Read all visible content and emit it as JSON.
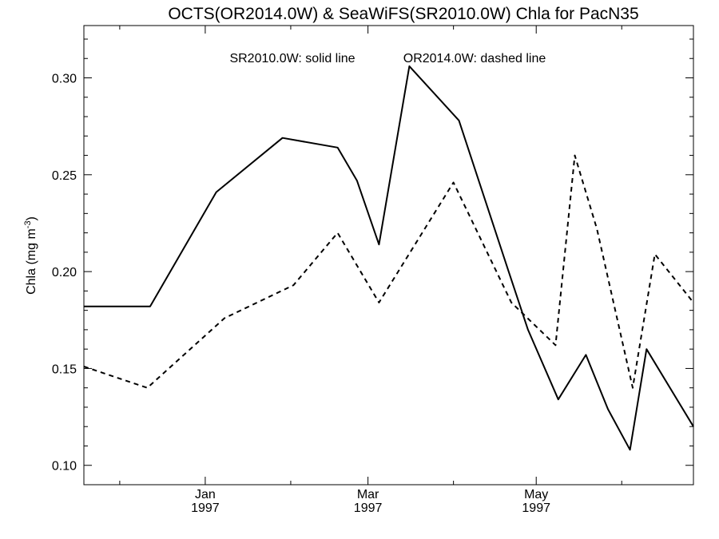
{
  "chart_data": {
    "type": "line",
    "title": "OCTS(OR2014.0W) & SeaWiFS(SR2010.0W)  Chla for PacN35",
    "legend_solid": "SR2010.0W: solid line",
    "legend_dashed": "OR2014.0W: dashed line",
    "ylabel_main": "Chla (mg m",
    "ylabel_exp": "-3",
    "ylabel_close": ")",
    "xlabel": "",
    "ylim": [
      0.09,
      0.327
    ],
    "xlim": [
      "1996-11-18",
      "1997-06-27"
    ],
    "yticks": [
      {
        "value": 0.1,
        "label": "0.10"
      },
      {
        "value": 0.15,
        "label": "0.15"
      },
      {
        "value": 0.2,
        "label": "0.20"
      },
      {
        "value": 0.25,
        "label": "0.25"
      },
      {
        "value": 0.3,
        "label": "0.30"
      }
    ],
    "xticks": [
      {
        "date": "1997-01-01",
        "month": "Jan",
        "year": "1997"
      },
      {
        "date": "1997-03-01",
        "month": "Mar",
        "year": "1997"
      },
      {
        "date": "1997-05-01",
        "month": "May",
        "year": "1997"
      }
    ],
    "xminor_ticks": [
      "1996-12-01",
      "1997-02-01",
      "1997-04-01",
      "1997-06-01"
    ],
    "series": [
      {
        "name": "SR2010.0W",
        "style": "solid",
        "points": [
          {
            "x": "1996-11-18",
            "y": 0.182
          },
          {
            "x": "1996-12-12",
            "y": 0.182
          },
          {
            "x": "1997-01-05",
            "y": 0.241
          },
          {
            "x": "1997-01-29",
            "y": 0.269
          },
          {
            "x": "1997-02-18",
            "y": 0.264
          },
          {
            "x": "1997-02-25",
            "y": 0.247
          },
          {
            "x": "1997-03-05",
            "y": 0.214
          },
          {
            "x": "1997-03-16",
            "y": 0.306
          },
          {
            "x": "1997-04-03",
            "y": 0.278
          },
          {
            "x": "1997-04-21",
            "y": 0.2
          },
          {
            "x": "1997-04-28",
            "y": 0.17
          },
          {
            "x": "1997-05-09",
            "y": 0.134
          },
          {
            "x": "1997-05-19",
            "y": 0.157
          },
          {
            "x": "1997-05-27",
            "y": 0.129
          },
          {
            "x": "1997-06-04",
            "y": 0.108
          },
          {
            "x": "1997-06-10",
            "y": 0.16
          },
          {
            "x": "1997-06-27",
            "y": 0.12
          }
        ]
      },
      {
        "name": "OR2014.0W",
        "style": "dashed",
        "points": [
          {
            "x": "1996-11-18",
            "y": 0.151
          },
          {
            "x": "1996-12-11",
            "y": 0.14
          },
          {
            "x": "1997-01-08",
            "y": 0.176
          },
          {
            "x": "1997-02-02",
            "y": 0.193
          },
          {
            "x": "1997-02-18",
            "y": 0.22
          },
          {
            "x": "1997-03-05",
            "y": 0.184
          },
          {
            "x": "1997-04-01",
            "y": 0.246
          },
          {
            "x": "1997-04-22",
            "y": 0.184
          },
          {
            "x": "1997-05-08",
            "y": 0.162
          },
          {
            "x": "1997-05-15",
            "y": 0.26
          },
          {
            "x": "1997-05-23",
            "y": 0.222
          },
          {
            "x": "1997-06-05",
            "y": 0.14
          },
          {
            "x": "1997-06-13",
            "y": 0.209
          },
          {
            "x": "1997-06-27",
            "y": 0.184
          }
        ]
      }
    ],
    "grid": false,
    "legend_position": "top-center",
    "colors": {
      "line": "#000000",
      "background": "#ffffff"
    }
  }
}
